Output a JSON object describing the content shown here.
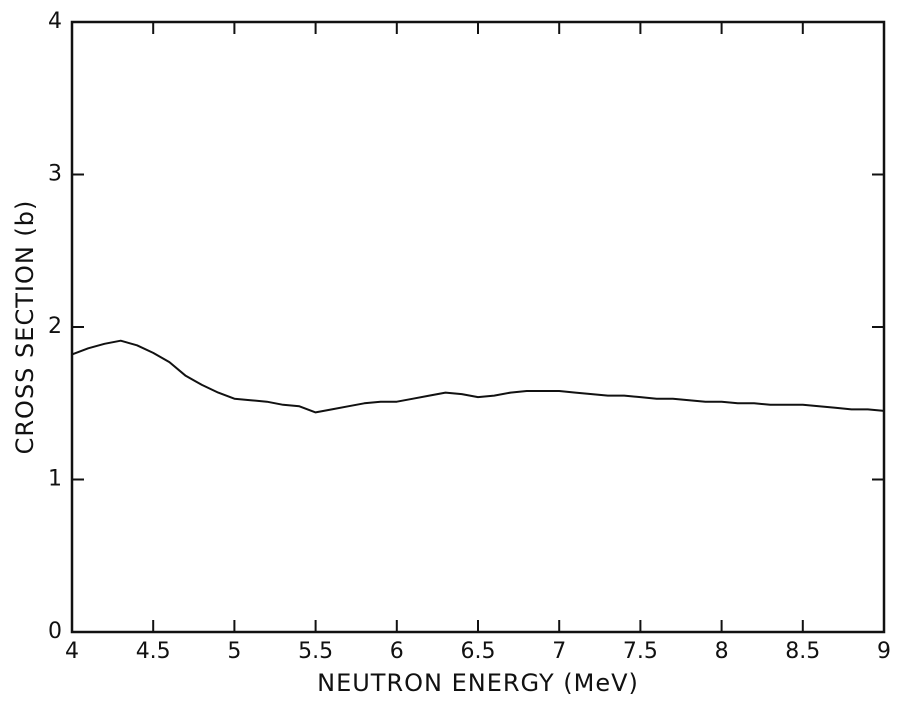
{
  "chart_data": {
    "type": "line",
    "x_label": "NEUTRON ENERGY (MeV)",
    "y_label": "CROSS SECTION (b)",
    "x": [
      4.0,
      4.1,
      4.2,
      4.3,
      4.4,
      4.5,
      4.6,
      4.7,
      4.8,
      4.9,
      5.0,
      5.1,
      5.2,
      5.3,
      5.4,
      5.5,
      5.6,
      5.7,
      5.8,
      5.9,
      6.0,
      6.1,
      6.2,
      6.3,
      6.4,
      6.5,
      6.6,
      6.7,
      6.8,
      6.9,
      7.0,
      7.1,
      7.2,
      7.3,
      7.4,
      7.5,
      7.6,
      7.7,
      7.8,
      7.9,
      8.0,
      8.1,
      8.2,
      8.3,
      8.4,
      8.5,
      8.6,
      8.7,
      8.8,
      8.9,
      9.0
    ],
    "values": [
      1.82,
      1.86,
      1.89,
      1.91,
      1.88,
      1.83,
      1.77,
      1.68,
      1.62,
      1.57,
      1.53,
      1.52,
      1.51,
      1.49,
      1.48,
      1.44,
      1.46,
      1.48,
      1.5,
      1.51,
      1.51,
      1.53,
      1.55,
      1.57,
      1.56,
      1.54,
      1.55,
      1.57,
      1.58,
      1.58,
      1.58,
      1.57,
      1.56,
      1.55,
      1.55,
      1.54,
      1.53,
      1.53,
      1.52,
      1.51,
      1.51,
      1.5,
      1.5,
      1.49,
      1.49,
      1.49,
      1.48,
      1.47,
      1.46,
      1.46,
      1.45
    ],
    "color": "#111111",
    "xlim": [
      4,
      9
    ],
    "xticks": [
      4,
      4.5,
      5,
      5.5,
      6,
      6.5,
      7,
      7.5,
      8,
      8.5,
      9
    ],
    "ylim": [
      0,
      4
    ],
    "yticks": [
      0,
      1,
      2,
      3,
      4
    ],
    "grid": false
  }
}
